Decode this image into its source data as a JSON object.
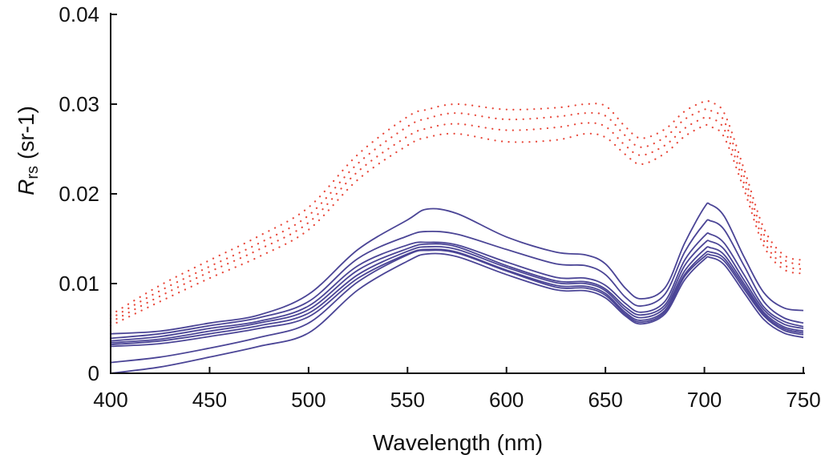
{
  "chart_data": {
    "type": "line",
    "title": "",
    "xlabel": "Wavelength (nm)",
    "ylabel_main": "R",
    "ylabel_sub": "rs",
    "ylabel_unit": "(sr-1)",
    "xlim": [
      400,
      750
    ],
    "ylim": [
      0,
      0.04
    ],
    "xticks": [
      400,
      450,
      500,
      550,
      600,
      650,
      700,
      750
    ],
    "yticks": [
      0,
      0.01,
      0.02,
      0.03,
      0.04
    ],
    "ytick_labels": [
      "0",
      "0.01",
      "0.02",
      "0.03",
      "0.04"
    ],
    "colors": {
      "solid": "#4b4596",
      "dotted": "#e8483a",
      "axis": "#111111"
    },
    "x": [
      400,
      425,
      450,
      475,
      500,
      525,
      550,
      560,
      575,
      600,
      625,
      640,
      650,
      660,
      668,
      680,
      690,
      700,
      703,
      710,
      720,
      730,
      740,
      750
    ],
    "series": [
      {
        "name": "solid-1",
        "style": "solid",
        "values": [
          0.0044,
          0.0047,
          0.0056,
          0.0065,
          0.0088,
          0.0138,
          0.0171,
          0.0183,
          0.0178,
          0.0152,
          0.0135,
          0.0132,
          0.0122,
          0.0095,
          0.0083,
          0.0095,
          0.0145,
          0.0185,
          0.0188,
          0.0175,
          0.013,
          0.009,
          0.0073,
          0.007
        ]
      },
      {
        "name": "solid-2",
        "style": "solid",
        "values": [
          0.0039,
          0.0044,
          0.0053,
          0.0062,
          0.008,
          0.0128,
          0.0153,
          0.0158,
          0.0155,
          0.0138,
          0.0122,
          0.012,
          0.011,
          0.0085,
          0.0075,
          0.0088,
          0.0135,
          0.0167,
          0.017,
          0.016,
          0.012,
          0.008,
          0.0062,
          0.0056
        ]
      },
      {
        "name": "solid-3",
        "style": "solid",
        "values": [
          0.0036,
          0.0041,
          0.005,
          0.0058,
          0.0075,
          0.012,
          0.0143,
          0.0146,
          0.0143,
          0.0124,
          0.0107,
          0.0106,
          0.0098,
          0.0078,
          0.0068,
          0.008,
          0.0126,
          0.0153,
          0.0155,
          0.0145,
          0.011,
          0.0074,
          0.0058,
          0.0052
        ]
      },
      {
        "name": "solid-4",
        "style": "solid",
        "values": [
          0.0034,
          0.0038,
          0.0047,
          0.0056,
          0.0071,
          0.0115,
          0.0139,
          0.0144,
          0.0141,
          0.012,
          0.0103,
          0.0102,
          0.0094,
          0.0074,
          0.0065,
          0.0076,
          0.012,
          0.0145,
          0.0147,
          0.0138,
          0.0104,
          0.0071,
          0.0055,
          0.005
        ]
      },
      {
        "name": "solid-5",
        "style": "solid",
        "values": [
          0.0032,
          0.0036,
          0.0044,
          0.0053,
          0.0067,
          0.011,
          0.0136,
          0.0141,
          0.0138,
          0.0118,
          0.0101,
          0.01,
          0.0092,
          0.0071,
          0.0062,
          0.0073,
          0.0114,
          0.0138,
          0.014,
          0.0132,
          0.01,
          0.0068,
          0.0052,
          0.0047
        ]
      },
      {
        "name": "solid-6",
        "style": "solid",
        "values": [
          0.003,
          0.0033,
          0.0041,
          0.005,
          0.0063,
          0.0106,
          0.0133,
          0.0138,
          0.0135,
          0.0115,
          0.0098,
          0.0097,
          0.0089,
          0.0068,
          0.0059,
          0.007,
          0.011,
          0.0133,
          0.0135,
          0.0128,
          0.0097,
          0.0066,
          0.005,
          0.0045
        ]
      },
      {
        "name": "solid-7",
        "style": "solid",
        "values": [
          0.0012,
          0.0018,
          0.0028,
          0.004,
          0.0056,
          0.0102,
          0.0132,
          0.0137,
          0.0134,
          0.0114,
          0.0096,
          0.0095,
          0.0087,
          0.0066,
          0.0057,
          0.0068,
          0.0108,
          0.013,
          0.0132,
          0.0125,
          0.0094,
          0.0064,
          0.0048,
          0.0043
        ]
      },
      {
        "name": "solid-8",
        "style": "solid",
        "values": [
          0.0,
          0.0007,
          0.0018,
          0.003,
          0.0045,
          0.0093,
          0.0125,
          0.0133,
          0.013,
          0.011,
          0.0093,
          0.0092,
          0.0084,
          0.0064,
          0.0055,
          0.0066,
          0.0104,
          0.0127,
          0.0129,
          0.0121,
          0.009,
          0.006,
          0.0045,
          0.004
        ]
      },
      {
        "name": "dotted-1",
        "style": "dotted",
        "values": [
          0.0065,
          0.0098,
          0.0126,
          0.0153,
          0.0185,
          0.0244,
          0.0286,
          0.0294,
          0.03,
          0.0294,
          0.0296,
          0.03,
          0.0298,
          0.0275,
          0.0262,
          0.0272,
          0.0292,
          0.0303,
          0.0302,
          0.029,
          0.0228,
          0.0162,
          0.0132,
          0.0126
        ]
      },
      {
        "name": "dotted-2",
        "style": "dotted",
        "values": [
          0.0061,
          0.0092,
          0.0119,
          0.0145,
          0.0176,
          0.0234,
          0.0275,
          0.0284,
          0.029,
          0.0283,
          0.0286,
          0.029,
          0.0287,
          0.0265,
          0.0252,
          0.0263,
          0.0283,
          0.0294,
          0.0293,
          0.0281,
          0.022,
          0.0155,
          0.0127,
          0.0121
        ]
      },
      {
        "name": "dotted-3",
        "style": "dotted",
        "values": [
          0.0057,
          0.0086,
          0.0113,
          0.0138,
          0.0168,
          0.0225,
          0.0264,
          0.0273,
          0.0278,
          0.0271,
          0.0274,
          0.0279,
          0.0275,
          0.0254,
          0.0243,
          0.0254,
          0.0273,
          0.0285,
          0.0284,
          0.0272,
          0.0212,
          0.0148,
          0.0121,
          0.0116
        ]
      },
      {
        "name": "dotted-4",
        "style": "dotted",
        "values": [
          0.0053,
          0.008,
          0.0106,
          0.013,
          0.016,
          0.0216,
          0.0254,
          0.0263,
          0.0267,
          0.0258,
          0.026,
          0.0267,
          0.0263,
          0.0244,
          0.0233,
          0.0245,
          0.0264,
          0.0276,
          0.0275,
          0.0263,
          0.0205,
          0.0142,
          0.0116,
          0.0111
        ]
      }
    ]
  }
}
